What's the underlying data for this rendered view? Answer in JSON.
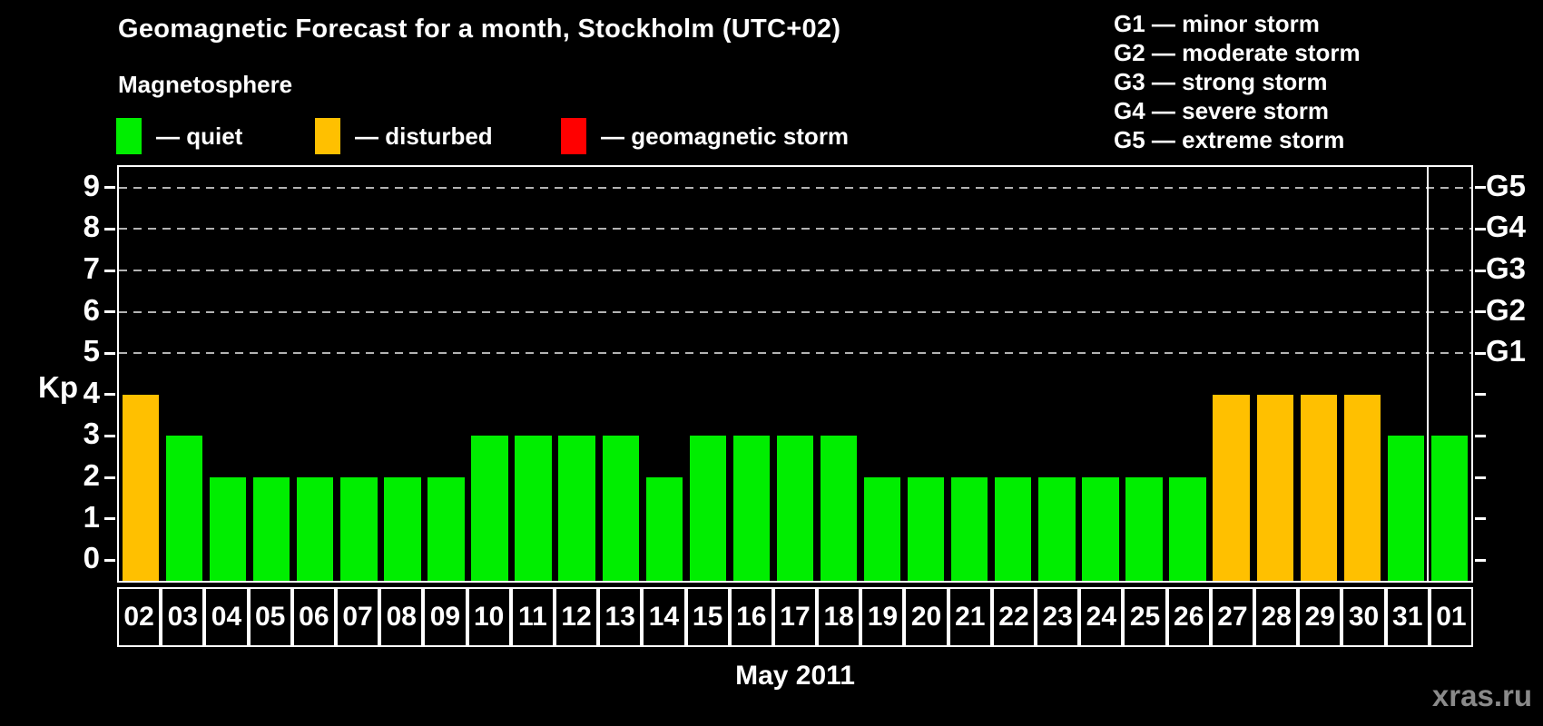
{
  "header": {
    "title": "Geomagnetic Forecast for a month, Stockholm (UTC+02)",
    "subtitle": "Magnetosphere"
  },
  "legend": {
    "items": [
      {
        "label": "— quiet",
        "status": "quiet"
      },
      {
        "label": "— disturbed",
        "status": "disturbed"
      },
      {
        "label": "— geomagnetic storm",
        "status": "storm"
      }
    ]
  },
  "g_legend": {
    "lines": [
      "G1 — minor storm",
      "G2 — moderate storm",
      "G3 — strong storm",
      "G4 — severe storm",
      "G5 — extreme storm"
    ]
  },
  "colors": {
    "quiet": "#00ee00",
    "disturbed": "#ffc000",
    "storm": "#ff0000",
    "grid": "#b3b3b3",
    "axis": "#ffffff",
    "watermark": "#8a8a8a",
    "background": "#000000"
  },
  "watermark": "xras.ru",
  "chart_data": {
    "type": "bar",
    "title": "Geomagnetic Forecast for a month, Stockholm (UTC+02)",
    "xlabel": "May 2011",
    "ylabel": "Kp",
    "ylim": [
      -0.5,
      9.5
    ],
    "yticks": [
      0,
      1,
      2,
      3,
      4,
      5,
      6,
      7,
      8,
      9
    ],
    "gridlines_at": [
      5,
      6,
      7,
      8,
      9
    ],
    "right_axis": [
      {
        "label": "G1",
        "kp": 5
      },
      {
        "label": "G2",
        "kp": 6
      },
      {
        "label": "G3",
        "kp": 7
      },
      {
        "label": "G4",
        "kp": 8
      },
      {
        "label": "G5",
        "kp": 9
      }
    ],
    "categories": [
      "02",
      "03",
      "04",
      "05",
      "06",
      "07",
      "08",
      "09",
      "10",
      "11",
      "12",
      "13",
      "14",
      "15",
      "16",
      "17",
      "18",
      "19",
      "20",
      "21",
      "22",
      "23",
      "24",
      "25",
      "26",
      "27",
      "28",
      "29",
      "30",
      "31",
      "01"
    ],
    "values": [
      4,
      3,
      2,
      2,
      2,
      2,
      2,
      2,
      3,
      3,
      3,
      3,
      2,
      3,
      3,
      3,
      3,
      2,
      2,
      2,
      2,
      2,
      2,
      2,
      2,
      4,
      4,
      4,
      4,
      3,
      3
    ],
    "statuses": [
      "disturbed",
      "quiet",
      "quiet",
      "quiet",
      "quiet",
      "quiet",
      "quiet",
      "quiet",
      "quiet",
      "quiet",
      "quiet",
      "quiet",
      "quiet",
      "quiet",
      "quiet",
      "quiet",
      "quiet",
      "quiet",
      "quiet",
      "quiet",
      "quiet",
      "quiet",
      "quiet",
      "quiet",
      "quiet",
      "disturbed",
      "disturbed",
      "disturbed",
      "disturbed",
      "quiet",
      "quiet"
    ],
    "month_boundary_index": 30,
    "legend_position": "top",
    "grid": "dashed-on-storm-levels-only"
  }
}
